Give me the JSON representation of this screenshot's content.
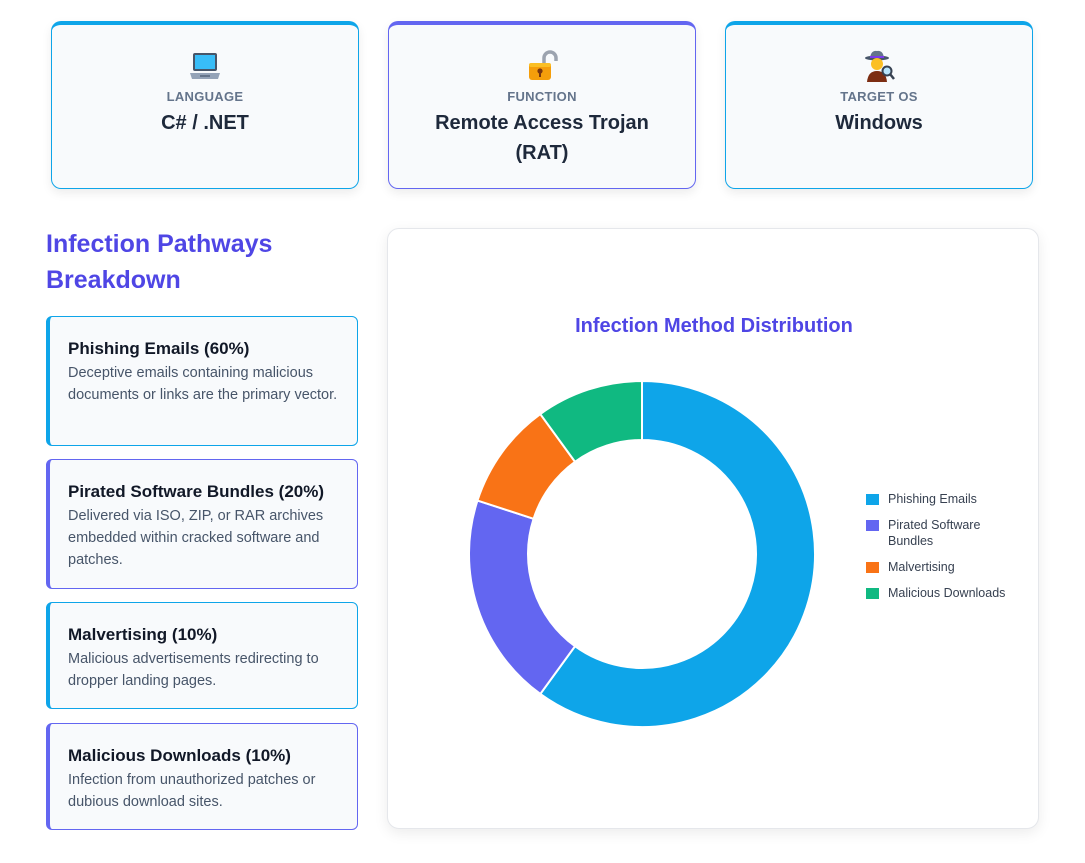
{
  "cards": [
    {
      "icon": "laptop-icon",
      "label": "LANGUAGE",
      "value": "C# / .NET"
    },
    {
      "icon": "unlocked-padlock-icon",
      "label": "FUNCTION",
      "value": "Remote Access Trojan (RAT)"
    },
    {
      "icon": "detective-icon",
      "label": "TARGET OS",
      "value": "Windows"
    }
  ],
  "section": {
    "title": "Infection Pathways Breakdown"
  },
  "pathways": [
    {
      "title": "Phishing Emails (60%)",
      "desc": "Deceptive emails containing malicious documents or links are the primary vector."
    },
    {
      "title": "Pirated Software Bundles (20%)",
      "desc": "Delivered via ISO, ZIP, or RAR archives embedded within cracked software and patches."
    },
    {
      "title": "Malvertising (10%)",
      "desc": "Malicious advertisements redirecting to dropper landing pages."
    },
    {
      "title": "Malicious Downloads (10%)",
      "desc": "Infection from unauthorized patches or dubious download sites."
    }
  ],
  "colors": {
    "sky": "#0ea5e9",
    "indigo": "#6366f1",
    "orange": "#f97316",
    "green": "#10b981",
    "title": "#4f46e5"
  },
  "chart_data": {
    "type": "pie",
    "donut": true,
    "title": "Infection Method Distribution",
    "categories": [
      "Phishing Emails",
      "Pirated Software Bundles",
      "Malvertising",
      "Malicious Downloads"
    ],
    "values": [
      60,
      20,
      10,
      10
    ],
    "colors": [
      "#0ea5e9",
      "#6366f1",
      "#f97316",
      "#10b981"
    ],
    "legend_position": "right"
  }
}
